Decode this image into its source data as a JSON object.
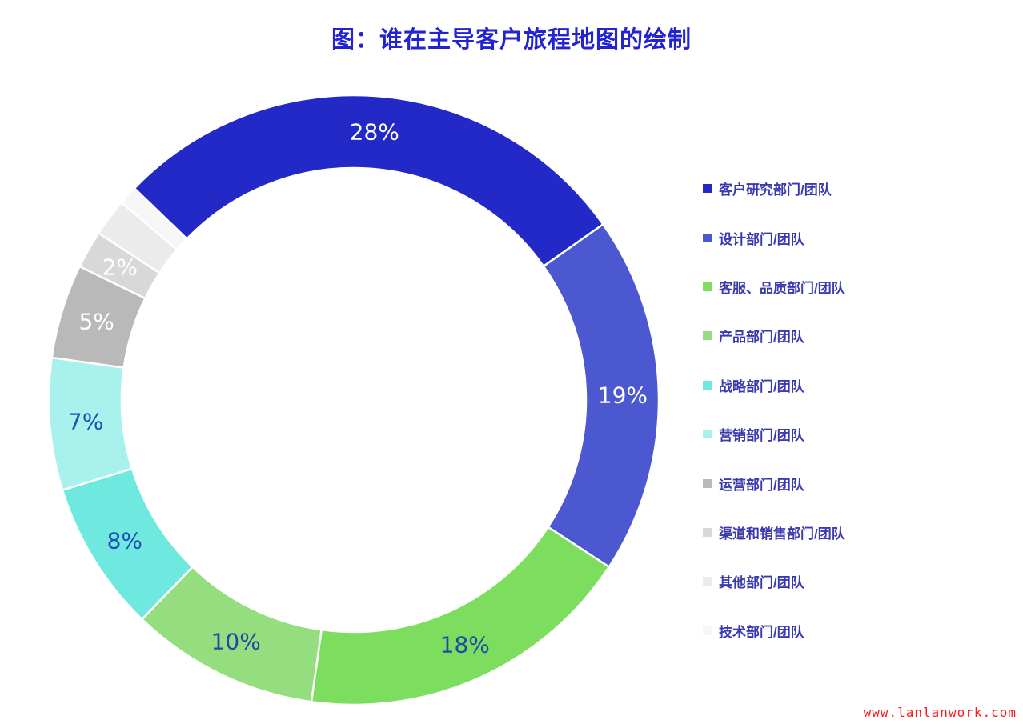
{
  "title": "图：谁在主导客户旅程地图的绘制",
  "watermark": "www.lanlanwork.com",
  "colors": {
    "title_text": "#2323d2",
    "legend_text": "#3a3ab0",
    "label_dark_blue": "#2150b0",
    "label_white": "#ffffff",
    "separator": "#ffffff",
    "watermark_red": "#ff1a1a"
  },
  "chart_data": {
    "type": "pie",
    "subtype": "donut",
    "title": "图：谁在主导客户旅程地图的绘制",
    "unit": "%",
    "start_angle_deg": -46,
    "direction": "clockwise",
    "inner_radius_ratio": 0.76,
    "legend_position": "right",
    "series": [
      {
        "label": "客户研究部门/团队",
        "value": 28,
        "display": "28%",
        "color": "#2329c6",
        "label_color": "#ffffff",
        "show_label": true
      },
      {
        "label": "设计部门/团队",
        "value": 19,
        "display": "19%",
        "color": "#4c58d0",
        "label_color": "#ffffff",
        "show_label": true
      },
      {
        "label": "客服、品质部门/团队",
        "value": 18,
        "display": "18%",
        "color": "#7cdd5e",
        "label_color": "#1e4aa5",
        "show_label": true
      },
      {
        "label": "产品部门/团队",
        "value": 10,
        "display": "10%",
        "color": "#94de80",
        "label_color": "#1e4aa5",
        "show_label": true
      },
      {
        "label": "战略部门/团队",
        "value": 8,
        "display": "8%",
        "color": "#6fe9e0",
        "label_color": "#2150b0",
        "show_label": true
      },
      {
        "label": "营销部门/团队",
        "value": 7,
        "display": "7%",
        "color": "#a9f1ec",
        "label_color": "#2150b0",
        "show_label": true
      },
      {
        "label": "运营部门/团队",
        "value": 5,
        "display": "5%",
        "color": "#b9b9b9",
        "label_color": "#ffffff",
        "show_label": true
      },
      {
        "label": "渠道和销售部门/团队",
        "value": 2,
        "display": "2%",
        "color": "#d8d8d8",
        "label_color": "#ffffff",
        "show_label": true
      },
      {
        "label": "其他部门/团队",
        "value": 2,
        "display": "",
        "color": "#ebebeb",
        "label_color": "#ffffff",
        "show_label": false
      },
      {
        "label": "技术部门/团队",
        "value": 1,
        "display": "",
        "color": "#f6f6f6",
        "label_color": "#ffffff",
        "show_label": false
      }
    ]
  }
}
